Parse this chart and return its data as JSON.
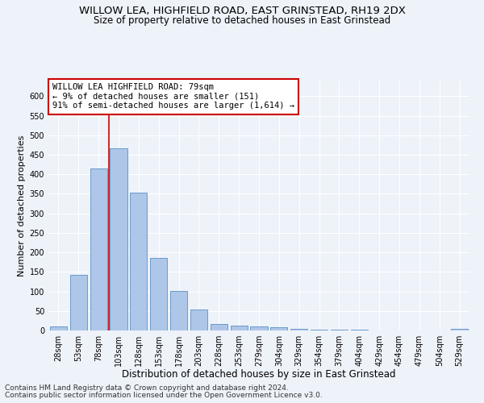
{
  "title": "WILLOW LEA, HIGHFIELD ROAD, EAST GRINSTEAD, RH19 2DX",
  "subtitle": "Size of property relative to detached houses in East Grinstead",
  "xlabel": "Distribution of detached houses by size in East Grinstead",
  "ylabel": "Number of detached properties",
  "footnote1": "Contains HM Land Registry data © Crown copyright and database right 2024.",
  "footnote2": "Contains public sector information licensed under the Open Government Licence v3.0.",
  "bar_labels": [
    "28sqm",
    "53sqm",
    "78sqm",
    "103sqm",
    "128sqm",
    "153sqm",
    "178sqm",
    "203sqm",
    "228sqm",
    "253sqm",
    "279sqm",
    "304sqm",
    "329sqm",
    "354sqm",
    "379sqm",
    "404sqm",
    "429sqm",
    "454sqm",
    "479sqm",
    "504sqm",
    "529sqm"
  ],
  "bar_values": [
    10,
    143,
    415,
    467,
    354,
    185,
    102,
    54,
    16,
    13,
    10,
    9,
    4,
    3,
    2,
    2,
    0,
    0,
    0,
    0,
    4
  ],
  "bar_color": "#aec6e8",
  "bar_edge_color": "#5a90c8",
  "vline_color": "#cc0000",
  "ylim_max": 640,
  "yticks": [
    0,
    50,
    100,
    150,
    200,
    250,
    300,
    350,
    400,
    450,
    500,
    550,
    600
  ],
  "annotation_box_text": "WILLOW LEA HIGHFIELD ROAD: 79sqm\n← 9% of detached houses are smaller (151)\n91% of semi-detached houses are larger (1,614) →",
  "annotation_box_color": "#cc0000",
  "annotation_box_fill": "#ffffff",
  "bg_color": "#eef2f9",
  "title_fontsize": 9.5,
  "subtitle_fontsize": 8.5,
  "xlabel_fontsize": 8.5,
  "ylabel_fontsize": 8,
  "tick_fontsize": 7,
  "annot_fontsize": 7.5,
  "footnote_fontsize": 6.5
}
